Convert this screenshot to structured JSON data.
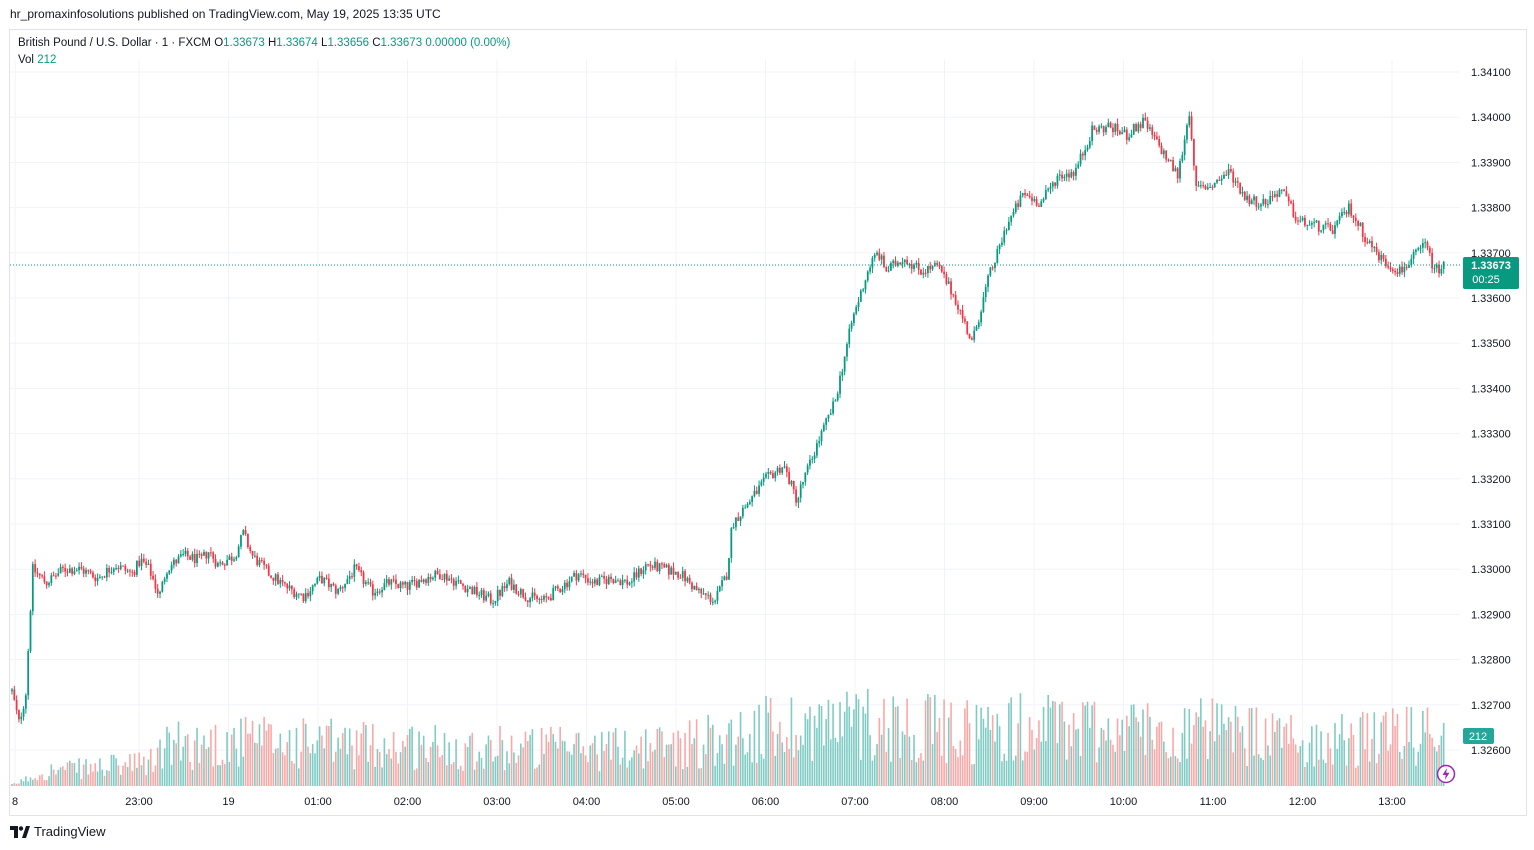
{
  "caption": "hr_promaxinfosolutions published on TradingView.com, May 19, 2025 13:35 UTC",
  "legend": {
    "symbol": "British Pound / U.S. Dollar · 1 · FXCM",
    "o_label": "O",
    "o_value": "1.33673",
    "h_label": "H",
    "h_value": "1.33674",
    "l_label": "L",
    "l_value": "1.33656",
    "c_label": "C",
    "c_value": "1.33673",
    "change": "0.00000 (0.00%)",
    "vol_label": "Vol",
    "vol_value": "212"
  },
  "price_tag": {
    "price": "1.33673",
    "countdown": "00:25"
  },
  "volume_tag": "212",
  "logo_text": "TradingView",
  "colors": {
    "up": "#089981",
    "down": "#f23645",
    "vol_up": "#80cbc4",
    "vol_down": "#f7a9a7",
    "grid": "#f0f3fa",
    "axis_text": "#131722"
  },
  "chart_data": {
    "type": "candlestick",
    "y_ticks": [
      "1.34100",
      "1.34000",
      "1.33900",
      "1.33800",
      "1.33700",
      "1.33600",
      "1.33500",
      "1.33400",
      "1.33300",
      "1.33200",
      "1.33100",
      "1.33000",
      "1.32900",
      "1.32800",
      "1.32700",
      "1.32600"
    ],
    "x_ticks": [
      "8",
      "23:00",
      "19",
      "01:00",
      "02:00",
      "03:00",
      "04:00",
      "05:00",
      "06:00",
      "07:00",
      "08:00",
      "09:00",
      "10:00",
      "11:00",
      "12:00",
      "13:00"
    ],
    "ylim": [
      1.3253,
      1.3414
    ],
    "last_price": 1.33673,
    "last_volume": 212,
    "price_path": [
      [
        0,
        1.3273
      ],
      [
        0.4,
        1.3266
      ],
      [
        0.8,
        1.3272
      ],
      [
        1.2,
        1.33
      ],
      [
        2,
        1.3297
      ],
      [
        3,
        1.33
      ],
      [
        4,
        1.33
      ],
      [
        5,
        1.3298
      ],
      [
        6,
        1.3301
      ],
      [
        7,
        1.3299
      ],
      [
        7.5,
        1.3302
      ],
      [
        8,
        1.33
      ],
      [
        8.6,
        1.3294
      ],
      [
        9,
        1.33
      ],
      [
        10,
        1.3303
      ],
      [
        11,
        1.3302
      ],
      [
        11.5,
        1.3304
      ],
      [
        12,
        1.3301
      ],
      [
        13,
        1.3303
      ],
      [
        13.5,
        1.3308
      ],
      [
        14,
        1.3303
      ],
      [
        15,
        1.3299
      ],
      [
        16,
        1.3296
      ],
      [
        17,
        1.3294
      ],
      [
        18,
        1.3298
      ],
      [
        19,
        1.3295
      ],
      [
        20,
        1.33
      ],
      [
        21,
        1.3295
      ],
      [
        22,
        1.3297
      ],
      [
        23,
        1.3296
      ],
      [
        24,
        1.3298
      ],
      [
        25,
        1.3299
      ],
      [
        26,
        1.3297
      ],
      [
        27,
        1.3295
      ],
      [
        28,
        1.3293
      ],
      [
        29,
        1.3297
      ],
      [
        30,
        1.3294
      ],
      [
        31,
        1.3293
      ],
      [
        32,
        1.3296
      ],
      [
        33,
        1.3299
      ],
      [
        34,
        1.3297
      ],
      [
        35,
        1.3298
      ],
      [
        36,
        1.3297
      ],
      [
        37,
        1.3301
      ],
      [
        38,
        1.33
      ],
      [
        39,
        1.3299
      ],
      [
        40,
        1.3295
      ],
      [
        41,
        1.3293
      ],
      [
        41.7,
        1.3299
      ],
      [
        42,
        1.331
      ],
      [
        43,
        1.3315
      ],
      [
        44,
        1.332
      ],
      [
        45,
        1.3323
      ],
      [
        45.8,
        1.3315
      ],
      [
        46,
        1.3318
      ],
      [
        47,
        1.3328
      ],
      [
        48,
        1.3337
      ],
      [
        49,
        1.3355
      ],
      [
        50,
        1.3367
      ],
      [
        50.5,
        1.337
      ],
      [
        51,
        1.3366
      ],
      [
        52,
        1.3369
      ],
      [
        53,
        1.3366
      ],
      [
        54,
        1.3367
      ],
      [
        55,
        1.336
      ],
      [
        56,
        1.335
      ],
      [
        57,
        1.3365
      ],
      [
        57.5,
        1.337
      ],
      [
        58,
        1.3376
      ],
      [
        59,
        1.3383
      ],
      [
        60,
        1.3381
      ],
      [
        61,
        1.3387
      ],
      [
        62,
        1.3388
      ],
      [
        63,
        1.3397
      ],
      [
        64,
        1.3398
      ],
      [
        65,
        1.3396
      ],
      [
        66,
        1.3399
      ],
      [
        67,
        1.3393
      ],
      [
        68,
        1.3387
      ],
      [
        68.7,
        1.3402
      ],
      [
        69,
        1.3384
      ],
      [
        70,
        1.3385
      ],
      [
        71,
        1.3388
      ],
      [
        72,
        1.3382
      ],
      [
        73,
        1.3381
      ],
      [
        74,
        1.3384
      ],
      [
        75,
        1.3377
      ],
      [
        76,
        1.3376
      ],
      [
        77,
        1.3375
      ],
      [
        78,
        1.338
      ],
      [
        79,
        1.3373
      ],
      [
        80,
        1.3368
      ],
      [
        81,
        1.3366
      ],
      [
        82,
        1.337
      ],
      [
        82.4,
        1.3372
      ],
      [
        83,
        1.3366
      ],
      [
        83.5,
        1.3367
      ]
    ],
    "volume_path": [
      [
        0,
        2
      ],
      [
        2,
        30
      ],
      [
        8,
        45
      ],
      [
        9,
        80
      ],
      [
        14,
        90
      ],
      [
        18,
        85
      ],
      [
        25,
        80
      ],
      [
        33,
        75
      ],
      [
        38,
        80
      ],
      [
        42,
        100
      ],
      [
        45,
        120
      ],
      [
        50,
        130
      ],
      [
        55,
        110
      ],
      [
        60,
        120
      ],
      [
        65,
        115
      ],
      [
        70,
        110
      ],
      [
        75,
        90
      ],
      [
        80,
        95
      ],
      [
        83,
        110
      ],
      [
        83.5,
        212
      ]
    ]
  }
}
